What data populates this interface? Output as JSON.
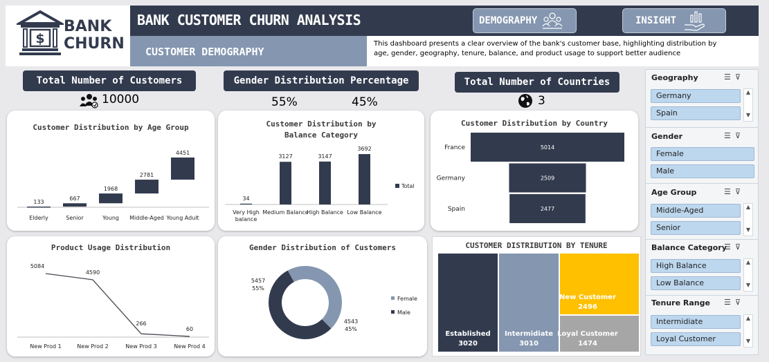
{
  "header": {
    "logo_text_1": "BANK",
    "logo_text_2": "CHURN",
    "title": "BANK CUSTOMER CHURN ANALYSIS",
    "subtitle": "CUSTOMER DEMOGRAPHY",
    "nav": [
      {
        "label": "DEMOGRAPHY",
        "icon": "people-icon"
      },
      {
        "label": "INSIGHT",
        "icon": "chart-hand-icon"
      }
    ],
    "description": "This dashboard presents a clear overview of the bank's customer base, highlighting distribution by age, gender, geography, tenure, balance, and product usage to support better audience"
  },
  "kpis": {
    "customers": {
      "title": "Total Number of Customers",
      "value": "10000"
    },
    "gender": {
      "title": "Gender Distribution Percentage",
      "female": "55%",
      "male": "45%"
    },
    "countries": {
      "title": "Total Number of Countries",
      "value": "3"
    }
  },
  "colors": {
    "navy": "#323b4e",
    "slate": "#8496b0",
    "gold": "#ffc000",
    "grey": "#a6a6a6"
  },
  "chart_data": [
    {
      "id": "age",
      "type": "bar",
      "subtype": "waterfall",
      "title": "Customer Distribution by Age Group",
      "categories": [
        "Elderly",
        "Senior",
        "Young",
        "Middle-Aged",
        "Young Adult"
      ],
      "values": [
        133,
        667,
        1968,
        2781,
        4451
      ]
    },
    {
      "id": "balance",
      "type": "bar",
      "title": "Customer Distribution by Balance Category",
      "categories": [
        "Very High balance",
        "Medium Balance",
        "High Balance",
        "Low Balance"
      ],
      "series": [
        {
          "name": "Total",
          "values": [
            34,
            3127,
            3147,
            3692
          ]
        }
      ],
      "legend": "right"
    },
    {
      "id": "country",
      "type": "bar",
      "orientation": "horizontal",
      "title": "Customer Distribution by Country",
      "categories": [
        "France",
        "Germany",
        "Spain"
      ],
      "values": [
        5014,
        2509,
        2477
      ]
    },
    {
      "id": "product",
      "type": "line",
      "title": "Product Usage Distribution",
      "categories": [
        "New Prod 1",
        "New Prod 2",
        "New Prod 3",
        "New Prod 4"
      ],
      "values": [
        5084,
        4590,
        266,
        60
      ]
    },
    {
      "id": "gender",
      "type": "pie",
      "subtype": "donut",
      "title": "Gender Distribution of Customers",
      "categories": [
        "Female",
        "Male"
      ],
      "values": [
        5457,
        4543
      ],
      "percent_labels": [
        "55%",
        "45%"
      ],
      "legend": "right"
    },
    {
      "id": "tenure",
      "type": "treemap",
      "title": "CUSTOMER DISTRIBUTION BY TENURE",
      "categories": [
        "Established",
        "Intermidiate",
        "New Customer",
        "Loyal Customer"
      ],
      "values": [
        3020,
        3010,
        2496,
        1474
      ]
    }
  ],
  "slicers": [
    {
      "title": "Geography",
      "items": [
        "Germany",
        "Spain"
      ]
    },
    {
      "title": "Gender",
      "items": [
        "Female",
        "Male"
      ]
    },
    {
      "title": "Age Group",
      "items": [
        "Middle-Aged",
        "Senior"
      ]
    },
    {
      "title": "Balance Category",
      "items": [
        "High Balance",
        "Low Balance"
      ]
    },
    {
      "title": "Tenure Range",
      "items": [
        "Intermidiate",
        "Loyal Customer"
      ]
    }
  ]
}
